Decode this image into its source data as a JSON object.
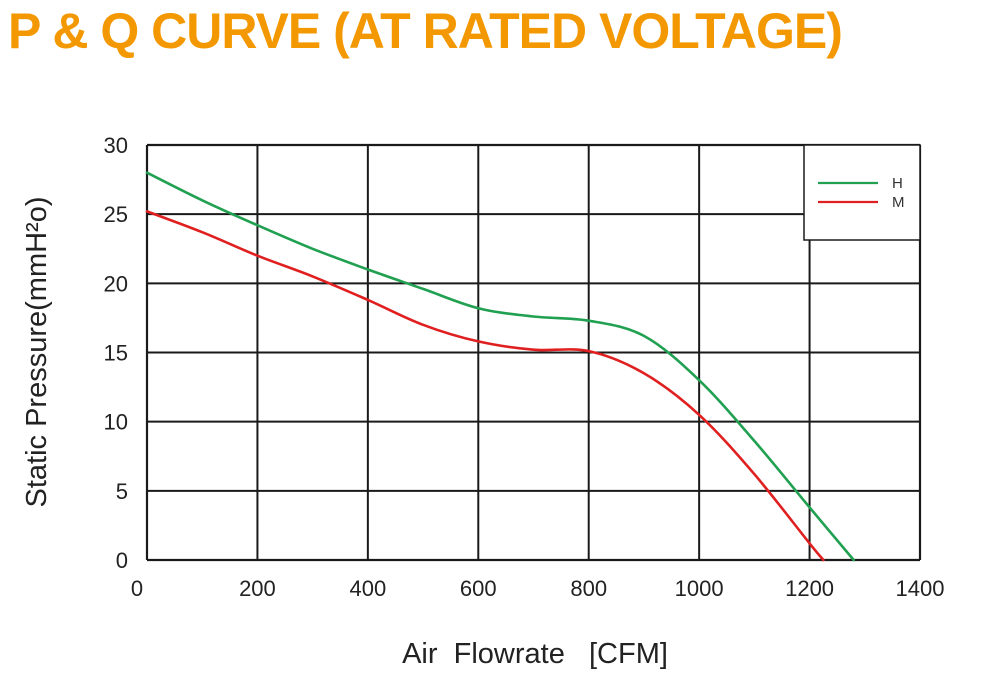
{
  "title": "P & Q CURVE (AT RATED VOLTAGE)",
  "colors": {
    "title": "#F39800",
    "grid": "#1a1a1a",
    "H": "#20A050",
    "M": "#E02020"
  },
  "chart_data": {
    "type": "line",
    "title": "P & Q CURVE (AT RATED VOLTAGE)",
    "xlabel": "Air  Flowrate   [CFM]",
    "ylabel": "Static Pressure(mmH²o)",
    "xlim": [
      0,
      1400
    ],
    "ylim": [
      0,
      30
    ],
    "xticks": [
      "0",
      "200",
      "400",
      "600",
      "800",
      "1000",
      "1200",
      "1400"
    ],
    "yticks": [
      "0",
      "5",
      "10",
      "15",
      "20",
      "25",
      "30"
    ],
    "grid": true,
    "legend_position": "top-right",
    "series": [
      {
        "name": "H",
        "color": "#20A050",
        "x": [
          0,
          100,
          200,
          300,
          400,
          500,
          600,
          700,
          800,
          900,
          1000,
          1100,
          1200,
          1280
        ],
        "y": [
          28,
          26,
          24.2,
          22.5,
          21,
          19.6,
          18.2,
          17.6,
          17.3,
          16.2,
          13,
          8.6,
          3.8,
          0
        ]
      },
      {
        "name": "M",
        "color": "#E02020",
        "x": [
          0,
          100,
          200,
          300,
          400,
          500,
          600,
          700,
          800,
          900,
          1000,
          1100,
          1200,
          1225
        ],
        "y": [
          25.2,
          23.7,
          22,
          20.5,
          18.8,
          17,
          15.8,
          15.2,
          15.1,
          13.5,
          10.5,
          6.2,
          1.2,
          0
        ]
      }
    ]
  }
}
